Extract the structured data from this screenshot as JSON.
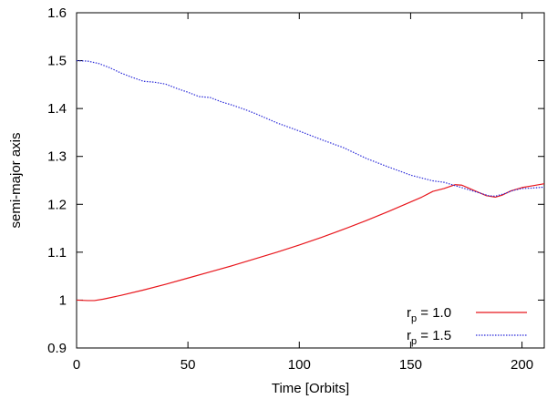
{
  "chart_data": {
    "type": "line",
    "title": "",
    "xlabel": "Time [Orbits]",
    "ylabel": "semi-major axis",
    "xlim": [
      0,
      210
    ],
    "ylim": [
      0.9,
      1.6
    ],
    "x_ticks": [
      0,
      50,
      100,
      150,
      200
    ],
    "y_ticks": [
      0.9,
      1.0,
      1.1,
      1.2,
      1.3,
      1.4,
      1.5,
      1.6
    ],
    "x_tick_labels": [
      "0",
      "50",
      "100",
      "150",
      "200"
    ],
    "y_tick_labels": [
      "0.9",
      "1",
      "1.1",
      "1.2",
      "1.3",
      "1.4",
      "1.5",
      "1.6"
    ],
    "grid": false,
    "legend_position": "bottom-right",
    "series": [
      {
        "name_main": "r",
        "name_sub": "p",
        "name_rest": " = 1.0",
        "color": "#e8161c",
        "dash": "solid",
        "x": [
          0,
          5,
          8,
          12,
          20,
          30,
          40,
          50,
          60,
          70,
          80,
          90,
          100,
          110,
          120,
          130,
          140,
          150,
          155,
          160,
          165,
          170,
          173,
          176,
          180,
          184,
          188,
          191,
          195,
          200,
          205,
          210
        ],
        "y": [
          1.0,
          0.999,
          0.999,
          1.002,
          1.01,
          1.021,
          1.033,
          1.046,
          1.059,
          1.072,
          1.086,
          1.1,
          1.115,
          1.131,
          1.148,
          1.166,
          1.185,
          1.205,
          1.215,
          1.227,
          1.233,
          1.241,
          1.24,
          1.234,
          1.226,
          1.218,
          1.215,
          1.219,
          1.228,
          1.235,
          1.239,
          1.243
        ]
      },
      {
        "name_main": "r",
        "name_sub": "p",
        "name_rest": " = 1.5",
        "color": "#2b2bd9",
        "dash": "dotted",
        "x": [
          0,
          5,
          10,
          15,
          20,
          25,
          30,
          35,
          40,
          45,
          50,
          55,
          60,
          65,
          70,
          75,
          80,
          90,
          100,
          110,
          120,
          130,
          140,
          150,
          160,
          165,
          170,
          175,
          180,
          185,
          188,
          192,
          196,
          200,
          205,
          210
        ],
        "y": [
          1.5,
          1.499,
          1.494,
          1.485,
          1.474,
          1.465,
          1.457,
          1.455,
          1.451,
          1.442,
          1.434,
          1.425,
          1.423,
          1.414,
          1.407,
          1.399,
          1.39,
          1.37,
          1.353,
          1.335,
          1.318,
          1.296,
          1.278,
          1.261,
          1.249,
          1.246,
          1.239,
          1.232,
          1.225,
          1.218,
          1.217,
          1.222,
          1.229,
          1.233,
          1.234,
          1.236
        ]
      }
    ]
  }
}
